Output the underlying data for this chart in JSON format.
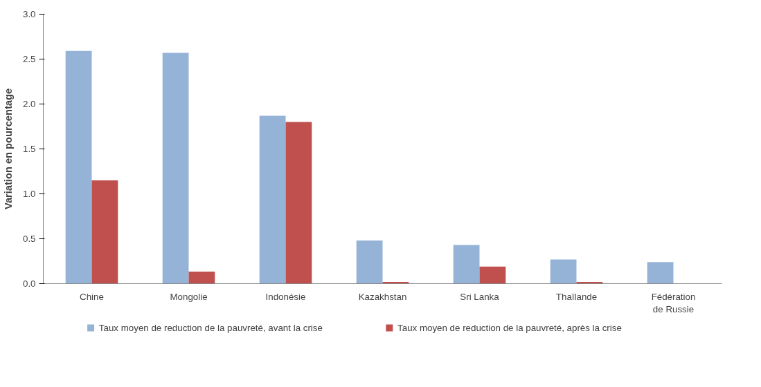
{
  "chart_data": {
    "type": "bar",
    "ylabel": "Variation en pourcentage",
    "categories": [
      "Chine",
      "Mongolie",
      "Indonésie",
      "Kazakhstan",
      "Sri Lanka",
      "Thaïlande",
      "Fédération de Russie"
    ],
    "series": [
      {
        "name": "Taux moyen de reduction de la pauvreté, avant la crise",
        "color": "#95b3d7",
        "values": [
          2.59,
          2.57,
          1.87,
          0.48,
          0.43,
          0.27,
          0.24
        ]
      },
      {
        "name": "Taux moyen de reduction de la pauvreté, après la crise",
        "color": "#c0504d",
        "values": [
          1.15,
          0.135,
          1.8,
          0.02,
          0.19,
          0.02,
          null
        ]
      }
    ],
    "ylim": [
      0,
      3.0
    ],
    "yticks": [
      {
        "value": 0,
        "label": "0.0"
      },
      {
        "value": 0.5,
        "label": "0.5"
      },
      {
        "value": 1.0,
        "label": "1.0"
      },
      {
        "value": 1.5,
        "label": "1.5"
      },
      {
        "value": 2.0,
        "label": "2.0"
      },
      {
        "value": 2.5,
        "label": "2.5"
      },
      {
        "value": 3.0,
        "label": "3.0"
      }
    ],
    "grid": false,
    "legend": "bottom"
  }
}
